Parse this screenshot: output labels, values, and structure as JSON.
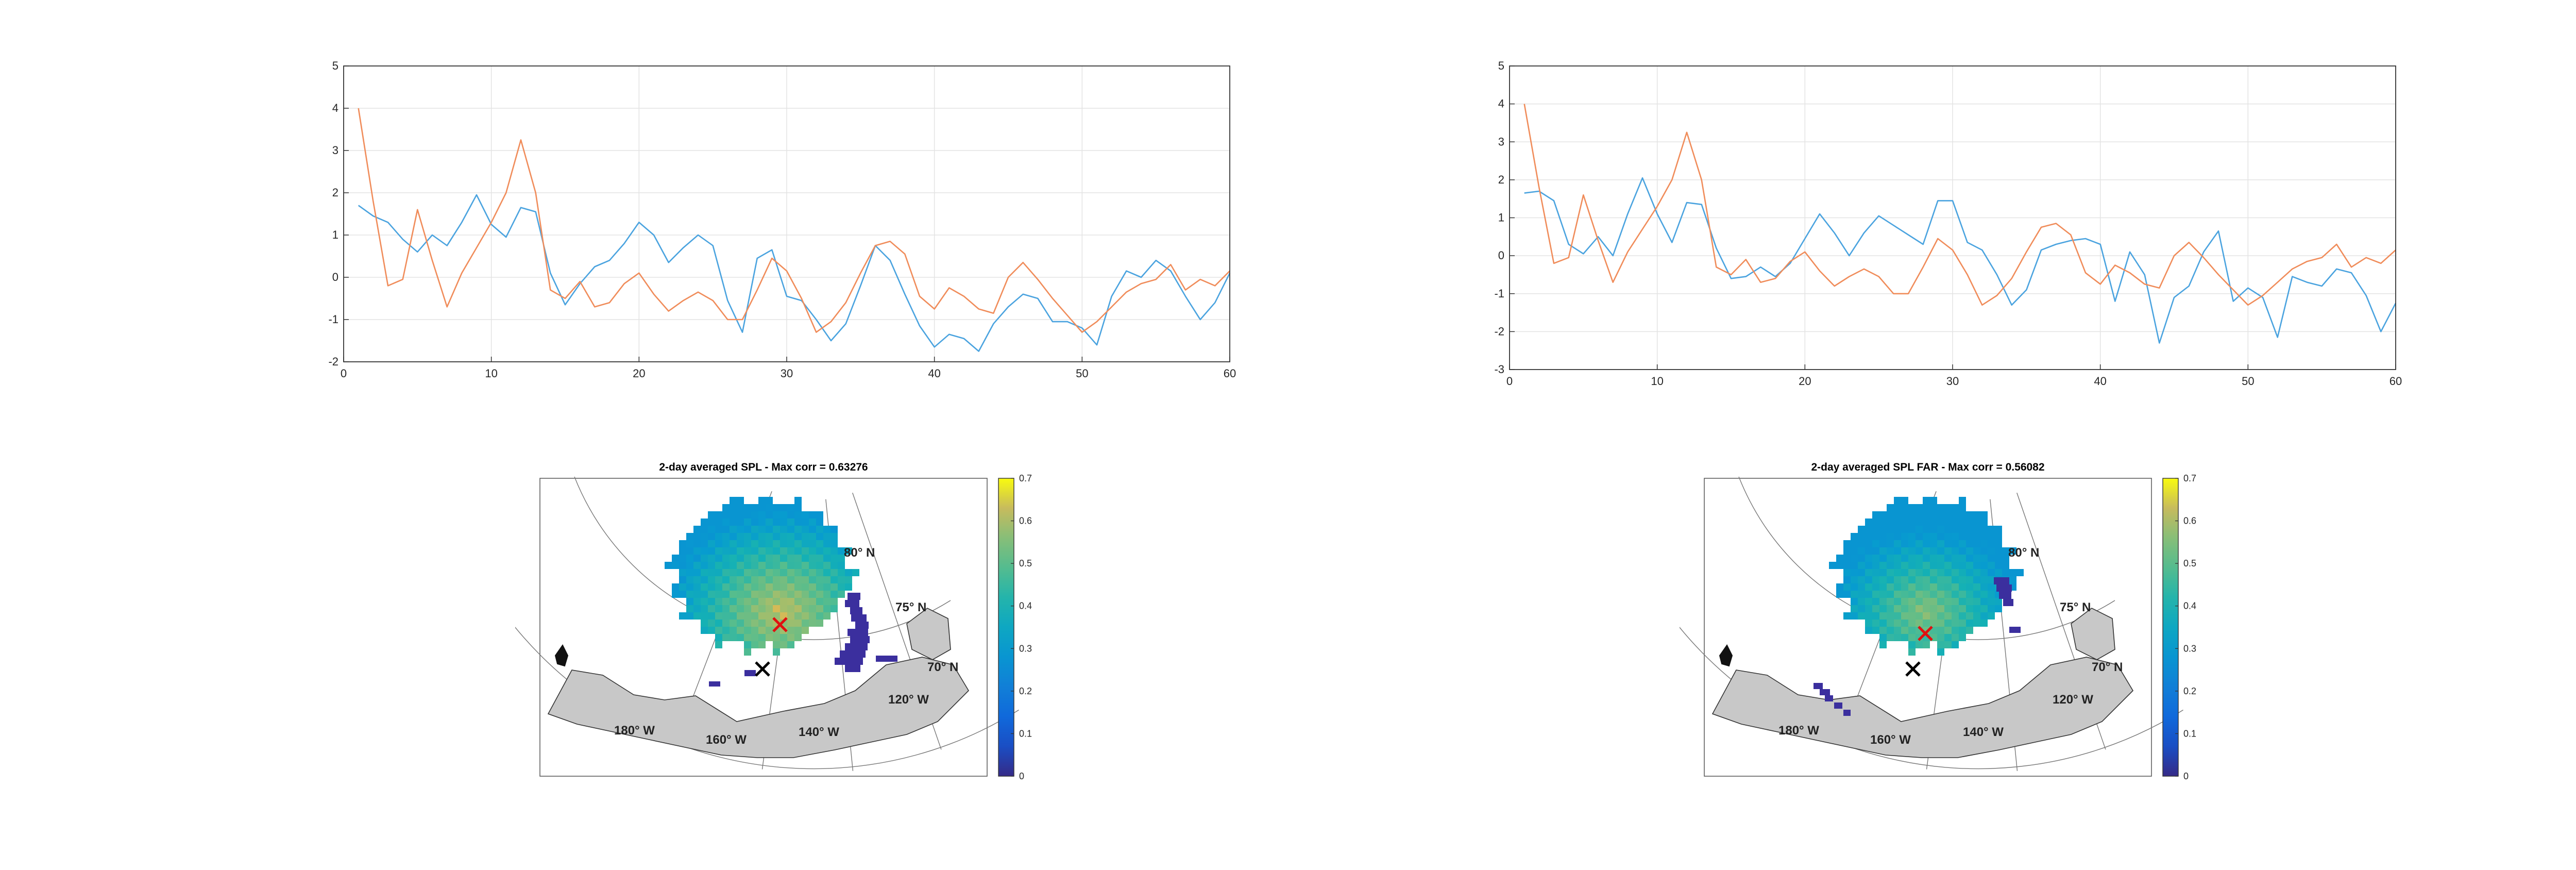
{
  "chart_data": [
    {
      "type": "line",
      "title": "",
      "xlabel": "",
      "ylabel": "",
      "xlim": [
        0,
        60
      ],
      "ylim": [
        -2,
        5
      ],
      "xticks": [
        0,
        10,
        20,
        30,
        40,
        50,
        60
      ],
      "yticks": [
        -2,
        -1,
        0,
        1,
        2,
        3,
        4,
        5
      ],
      "xtick_labels": [
        "0",
        "10",
        "20",
        "30",
        "40",
        "50",
        "60"
      ],
      "ytick_labels": [
        "-2",
        "-1",
        "0",
        "1",
        "2",
        "3",
        "4",
        "5"
      ],
      "grid": true,
      "series": [
        {
          "color": "#4aa3df",
          "x": [
            1,
            2,
            3,
            4,
            5,
            6,
            7,
            8,
            9,
            10,
            11,
            12,
            13,
            14,
            15,
            16,
            17,
            18,
            19,
            20,
            21,
            22,
            23,
            24,
            25,
            26,
            27,
            28,
            29,
            30,
            31,
            32,
            33,
            34,
            35,
            36,
            37,
            38,
            39,
            40,
            41,
            42,
            43,
            44,
            45,
            46,
            47,
            48,
            49,
            50,
            51,
            52,
            53,
            54,
            55,
            56,
            57,
            58,
            59,
            60
          ],
          "values": [
            1.7,
            1.45,
            1.3,
            0.9,
            0.6,
            1.0,
            0.75,
            1.3,
            1.95,
            1.25,
            0.95,
            1.65,
            1.55,
            0.1,
            -0.65,
            -0.15,
            0.25,
            0.4,
            0.8,
            1.3,
            1.0,
            0.35,
            0.7,
            1.0,
            0.75,
            -0.55,
            -1.3,
            0.45,
            0.65,
            -0.45,
            -0.55,
            -1.0,
            -1.5,
            -1.1,
            -0.2,
            0.75,
            0.4,
            -0.4,
            -1.15,
            -1.65,
            -1.35,
            -1.45,
            -1.75,
            -1.1,
            -0.7,
            -0.4,
            -0.5,
            -1.05,
            -1.05,
            -1.2,
            -1.6,
            -0.45,
            0.15,
            0.0,
            0.4,
            0.15,
            -0.45,
            -1.0,
            -0.6,
            0.1
          ]
        },
        {
          "color": "#f08c5a",
          "x": [
            1,
            2,
            3,
            4,
            5,
            6,
            7,
            8,
            9,
            10,
            11,
            12,
            13,
            14,
            15,
            16,
            17,
            18,
            19,
            20,
            21,
            22,
            23,
            24,
            25,
            26,
            27,
            28,
            29,
            30,
            31,
            32,
            33,
            34,
            35,
            36,
            37,
            38,
            39,
            40,
            41,
            42,
            43,
            44,
            45,
            46,
            47,
            48,
            49,
            50,
            51,
            52,
            53,
            54,
            55,
            56,
            57,
            58,
            59,
            60
          ],
          "values": [
            4.0,
            1.8,
            -0.2,
            -0.05,
            1.6,
            0.4,
            -0.7,
            0.1,
            0.7,
            1.3,
            2.0,
            3.25,
            2.0,
            -0.3,
            -0.5,
            -0.1,
            -0.7,
            -0.6,
            -0.15,
            0.1,
            -0.4,
            -0.8,
            -0.55,
            -0.35,
            -0.55,
            -1.0,
            -1.0,
            -0.3,
            0.45,
            0.15,
            -0.5,
            -1.3,
            -1.05,
            -0.6,
            0.1,
            0.75,
            0.85,
            0.55,
            -0.45,
            -0.75,
            -0.25,
            -0.45,
            -0.75,
            -0.85,
            0.0,
            0.35,
            -0.05,
            -0.5,
            -0.9,
            -1.3,
            -1.05,
            -0.7,
            -0.35,
            -0.15,
            -0.05,
            0.3,
            -0.3,
            -0.05,
            -0.2,
            0.15
          ]
        }
      ]
    },
    {
      "type": "line",
      "title": "",
      "xlabel": "",
      "ylabel": "",
      "xlim": [
        0,
        60
      ],
      "ylim": [
        -3,
        5
      ],
      "xticks": [
        0,
        10,
        20,
        30,
        40,
        50,
        60
      ],
      "yticks": [
        -3,
        -2,
        -1,
        0,
        1,
        2,
        3,
        4,
        5
      ],
      "xtick_labels": [
        "0",
        "10",
        "20",
        "30",
        "40",
        "50",
        "60"
      ],
      "ytick_labels": [
        "-3",
        "-2",
        "-1",
        "0",
        "1",
        "2",
        "3",
        "4",
        "5"
      ],
      "grid": true,
      "series": [
        {
          "color": "#4aa3df",
          "x": [
            1,
            2,
            3,
            4,
            5,
            6,
            7,
            8,
            9,
            10,
            11,
            12,
            13,
            14,
            15,
            16,
            17,
            18,
            19,
            20,
            21,
            22,
            23,
            24,
            25,
            26,
            27,
            28,
            29,
            30,
            31,
            32,
            33,
            34,
            35,
            36,
            37,
            38,
            39,
            40,
            41,
            42,
            43,
            44,
            45,
            46,
            47,
            48,
            49,
            50,
            51,
            52,
            53,
            54,
            55,
            56,
            57,
            58,
            59,
            60
          ],
          "values": [
            1.65,
            1.7,
            1.45,
            0.3,
            0.05,
            0.5,
            0.0,
            1.1,
            2.05,
            1.1,
            0.35,
            1.4,
            1.35,
            0.2,
            -0.6,
            -0.55,
            -0.3,
            -0.55,
            -0.2,
            0.45,
            1.1,
            0.6,
            0.0,
            0.6,
            1.05,
            0.8,
            0.55,
            0.3,
            1.45,
            1.45,
            0.35,
            0.15,
            -0.5,
            -1.3,
            -0.9,
            0.15,
            0.3,
            0.4,
            0.45,
            0.3,
            -1.2,
            0.1,
            -0.5,
            -2.3,
            -1.1,
            -0.8,
            0.1,
            0.65,
            -1.2,
            -0.85,
            -1.1,
            -2.15,
            -0.55,
            -0.7,
            -0.8,
            -0.35,
            -0.45,
            -1.05,
            -2.0,
            -1.25
          ]
        },
        {
          "color": "#f08c5a",
          "x": [
            1,
            2,
            3,
            4,
            5,
            6,
            7,
            8,
            9,
            10,
            11,
            12,
            13,
            14,
            15,
            16,
            17,
            18,
            19,
            20,
            21,
            22,
            23,
            24,
            25,
            26,
            27,
            28,
            29,
            30,
            31,
            32,
            33,
            34,
            35,
            36,
            37,
            38,
            39,
            40,
            41,
            42,
            43,
            44,
            45,
            46,
            47,
            48,
            49,
            50,
            51,
            52,
            53,
            54,
            55,
            56,
            57,
            58,
            59,
            60
          ],
          "values": [
            4.0,
            1.8,
            -0.2,
            -0.05,
            1.6,
            0.4,
            -0.7,
            0.1,
            0.7,
            1.3,
            2.0,
            3.25,
            2.0,
            -0.3,
            -0.5,
            -0.1,
            -0.7,
            -0.6,
            -0.15,
            0.1,
            -0.4,
            -0.8,
            -0.55,
            -0.35,
            -0.55,
            -1.0,
            -1.0,
            -0.3,
            0.45,
            0.15,
            -0.5,
            -1.3,
            -1.05,
            -0.6,
            0.1,
            0.75,
            0.85,
            0.55,
            -0.45,
            -0.75,
            -0.25,
            -0.45,
            -0.75,
            -0.85,
            0.0,
            0.35,
            -0.05,
            -0.5,
            -0.9,
            -1.3,
            -1.05,
            -0.7,
            -0.35,
            -0.15,
            -0.05,
            0.3,
            -0.3,
            -0.05,
            -0.2,
            0.15
          ]
        }
      ]
    },
    {
      "type": "heatmap",
      "title": "2-day averaged SPL - Max corr = 0.63276",
      "parallel_labels": [
        "80",
        "75",
        "70"
      ],
      "meridian_labels": [
        "180",
        "160",
        "140",
        "120"
      ],
      "lat_suffix": "N",
      "lon_suffix": "W",
      "degree_symbol": "°",
      "colorbar": {
        "ticks": [
          "0",
          "0.1",
          "0.2",
          "0.3",
          "0.4",
          "0.5",
          "0.6",
          "0.7"
        ],
        "range": [
          0,
          0.7
        ],
        "colormap": "parula"
      },
      "max_marker": "x",
      "max_marker_color": "#e01010",
      "station_marker": "x",
      "station_marker_color": "#000000",
      "land_color": "#c8c8c8",
      "max_corr": 0.63276
    },
    {
      "type": "heatmap",
      "title": "2-day averaged SPL FAR - Max corr = 0.56082",
      "parallel_labels": [
        "80",
        "75",
        "70"
      ],
      "meridian_labels": [
        "180",
        "160",
        "140",
        "120"
      ],
      "lat_suffix": "N",
      "lon_suffix": "W",
      "degree_symbol": "°",
      "colorbar": {
        "ticks": [
          "0",
          "0.1",
          "0.2",
          "0.3",
          "0.4",
          "0.5",
          "0.6",
          "0.7"
        ],
        "range": [
          0,
          0.7
        ],
        "colormap": "parula"
      },
      "max_marker": "x",
      "max_marker_color": "#e01010",
      "station_marker": "x",
      "station_marker_color": "#000000",
      "land_color": "#c8c8c8",
      "max_corr": 0.56082
    }
  ]
}
